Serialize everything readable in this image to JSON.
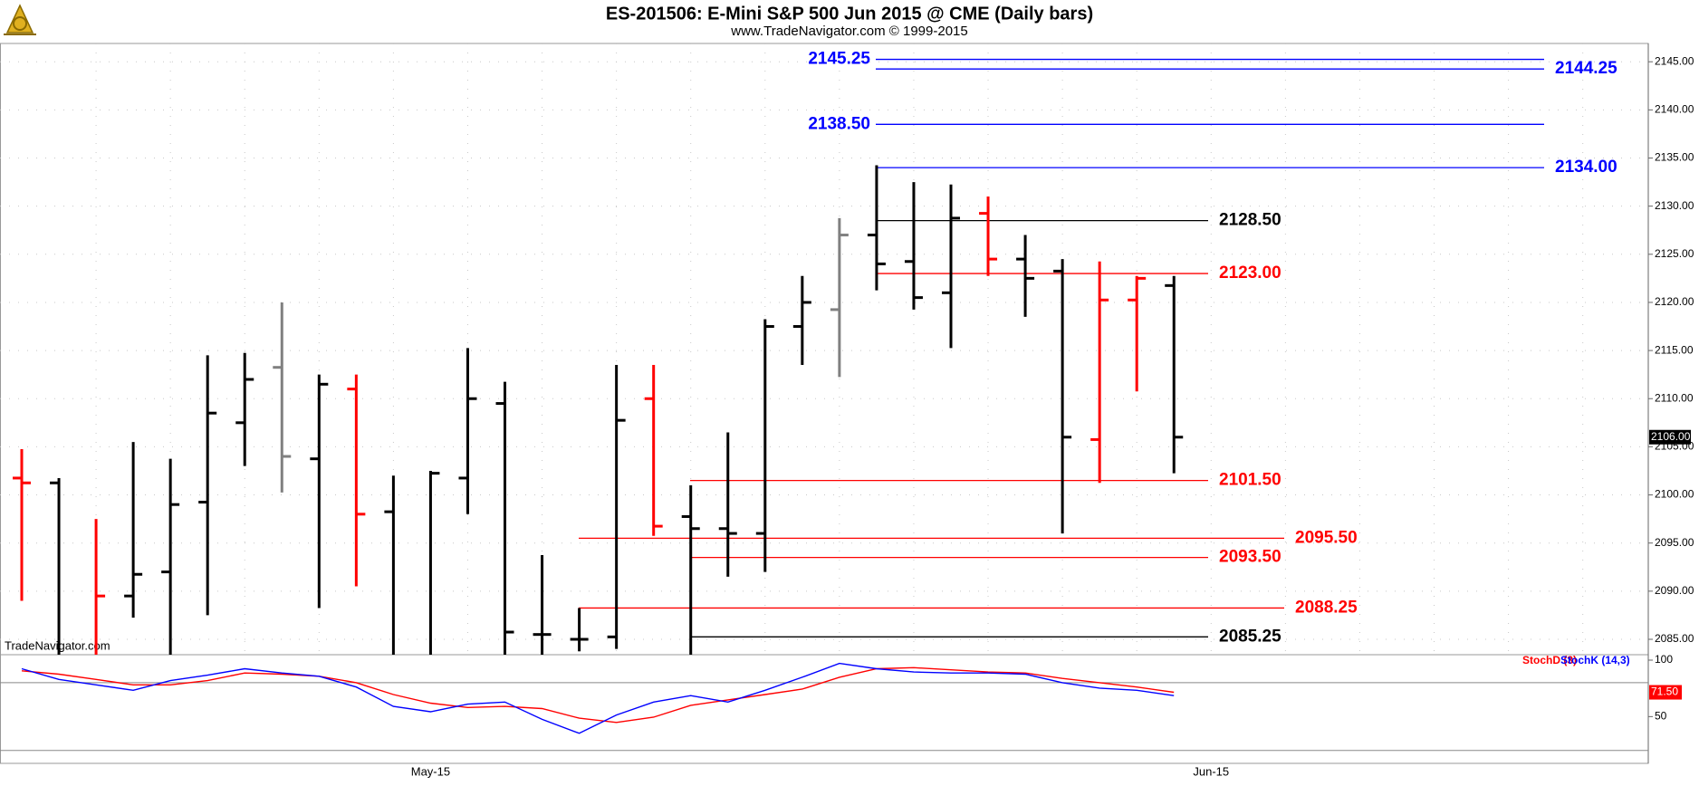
{
  "chart_data": [
    {
      "type": "ohlc",
      "title": "ES-201506:  E-Mini S&P 500 Jun 2015 @ CME  (Daily bars)",
      "subtitle": "www.TradeNavigator.com © 1999-2015",
      "watermark": "TradeNavigator.com",
      "categories": [
        null,
        null,
        null,
        null,
        null,
        null,
        null,
        null,
        null,
        null,
        null,
        "May-15",
        null,
        null,
        null,
        null,
        null,
        null,
        null,
        null,
        null,
        null,
        null,
        null,
        null,
        null,
        null,
        null,
        null,
        null,
        null,
        null,
        "Jun-15"
      ],
      "open": [
        2101.75,
        2101.25,
        2083,
        2089.5,
        2092,
        2099.25,
        2107.5,
        2113.25,
        2103.75,
        2111,
        2098.25,
        2083,
        2101.75,
        2109.5,
        2085.5,
        2085,
        2085.25,
        2110,
        2097.75,
        2096.5,
        2096,
        2117.5,
        2119.25,
        2127,
        2124.25,
        2121,
        2129.25,
        2124.5,
        2123.25,
        2105.75,
        2120.25,
        2121.75,
        null
      ],
      "high": [
        2104.75,
        2101.75,
        2097.5,
        2105.5,
        2103.75,
        2114.5,
        2114.75,
        2120,
        2112.5,
        2112.5,
        2102,
        2102.5,
        2115.25,
        2111.75,
        2093.75,
        2088.25,
        2113.5,
        2113.5,
        2101,
        2106.5,
        2118.25,
        2122.75,
        2128.75,
        2134.25,
        2132.5,
        2132.25,
        2131,
        2127,
        2124.5,
        2124.25,
        2122.75,
        2122.75,
        null
      ],
      "low": [
        2089,
        2082,
        2082,
        2087.25,
        2082.5,
        2087.5,
        2103,
        2100.25,
        2088.25,
        2090.5,
        2082,
        2082,
        2098,
        2082,
        2082,
        2083.75,
        2084,
        2095.75,
        2082,
        2091.5,
        2092,
        2113.5,
        2112.25,
        2121.25,
        2119.25,
        2115.25,
        2122.75,
        2118.5,
        2096,
        2101.25,
        2110.75,
        2102.25,
        null
      ],
      "close": [
        2101.25,
        2082.5,
        2089.5,
        2091.75,
        2099,
        2108.5,
        2112,
        2104,
        2111.5,
        2098,
        2083,
        2102.25,
        2110,
        2085.75,
        2085.5,
        2085,
        2107.75,
        2096.75,
        2096.5,
        2096,
        2117.5,
        2120,
        2127,
        2124,
        2120.5,
        2128.75,
        2124.5,
        2122.5,
        2106,
        2120.25,
        2122.5,
        2106,
        null
      ],
      "close_labels": [
        null,
        null,
        null,
        null,
        null,
        null,
        null,
        null,
        null,
        null,
        null,
        null,
        null,
        null,
        null,
        null,
        null,
        null,
        null,
        null,
        null,
        null,
        null,
        null,
        null,
        null,
        null,
        null,
        null,
        null,
        null,
        "2106.00",
        null
      ],
      "colors": [
        "#ff0000",
        "#000000",
        "#ff0000",
        "#000000",
        "#000000",
        "#000000",
        "#000000",
        "#808080",
        "#000000",
        "#ff0000",
        "#000000",
        "#000000",
        "#000000",
        "#000000",
        "#000000",
        "#000000",
        "#000000",
        "#ff0000",
        "#000000",
        "#000000",
        "#000000",
        "#000000",
        "#808080",
        "#000000",
        "#000000",
        "#000000",
        "#ff0000",
        "#000000",
        "#000000",
        "#ff0000",
        "#ff0000",
        "#000000",
        null
      ],
      "ylim": [
        2083.4,
        2146.9
      ],
      "yticks": [
        {
          "value": 2085,
          "label": "2085.00"
        },
        {
          "value": 2090,
          "label": "2090.00"
        },
        {
          "value": 2095,
          "label": "2095.00"
        },
        {
          "value": 2100,
          "label": "2100.00"
        },
        {
          "value": 2105,
          "label": "2105.00"
        },
        {
          "value": 2110,
          "label": "2110.00"
        },
        {
          "value": 2115,
          "label": "2115.00"
        },
        {
          "value": 2120,
          "label": "2120.00"
        },
        {
          "value": 2125,
          "label": "2125.00"
        },
        {
          "value": 2130,
          "label": "2130.00"
        },
        {
          "value": 2135,
          "label": "2135.00"
        },
        {
          "value": 2140,
          "label": "2140.00"
        },
        {
          "value": 2145,
          "label": "2145.00"
        }
      ],
      "grid": true,
      "levels": [
        {
          "value": 2145.25,
          "label": "2145.25",
          "color": "#0000ff"
        },
        {
          "value": 2144.25,
          "label": "2144.25",
          "color": "#0000ff"
        },
        {
          "value": 2138.5,
          "label": "2138.50",
          "color": "#0000ff"
        },
        {
          "value": 2134,
          "label": "2134.00",
          "color": "#0000ff"
        },
        {
          "value": 2128.5,
          "label": "2128.50",
          "color": "#000000"
        },
        {
          "value": 2123,
          "label": "2123.00",
          "color": "#ff0000"
        },
        {
          "value": 2101.5,
          "label": "2101.50",
          "color": "#ff0000"
        },
        {
          "value": 2095.5,
          "label": "2095.50",
          "color": "#ff0000"
        },
        {
          "value": 2093.5,
          "label": "2093.50",
          "color": "#ff0000"
        },
        {
          "value": 2088.25,
          "label": "2088.25",
          "color": "#ff0000"
        },
        {
          "value": 2085.25,
          "label": "2085.25",
          "color": "#000000"
        }
      ]
    },
    {
      "type": "line",
      "series": [
        {
          "name": "StochD (3)",
          "color": "#ff0000",
          "values": [
            90.5,
            87.6,
            82.9,
            78.1,
            78.1,
            81.9,
            88.6,
            87.6,
            85.7,
            80.0,
            69.5,
            61.9,
            58.1,
            59.0,
            57.1,
            48.6,
            44.8,
            49.5,
            60.0,
            64.8,
            69.5,
            74.3,
            84.8,
            92.4,
            93.3,
            91.4,
            89.5,
            88.6,
            83.8,
            80.0,
            76.2,
            71.5,
            null
          ],
          "value_labels": [
            null,
            null,
            null,
            null,
            null,
            null,
            null,
            null,
            null,
            null,
            null,
            null,
            null,
            null,
            null,
            null,
            null,
            null,
            null,
            null,
            null,
            null,
            null,
            null,
            null,
            null,
            null,
            null,
            null,
            null,
            null,
            "71.50",
            null
          ]
        },
        {
          "name": "StochK (14,3)",
          "color": "#0000ff",
          "values": [
            92.4,
            82.9,
            78.1,
            73.3,
            81.9,
            86.7,
            92.4,
            88.6,
            85.7,
            76.2,
            59.0,
            54.3,
            61.0,
            62.9,
            47.6,
            35.2,
            51.4,
            62.9,
            68.6,
            62.9,
            73.3,
            84.8,
            97.1,
            92.4,
            89.5,
            88.6,
            88.6,
            87.6,
            80.0,
            75.2,
            73.3,
            68.6,
            null
          ]
        }
      ],
      "ylim": [
        8.6,
        104.8
      ],
      "yticks": [
        100,
        50
      ],
      "hlines": [
        80,
        20
      ]
    }
  ]
}
